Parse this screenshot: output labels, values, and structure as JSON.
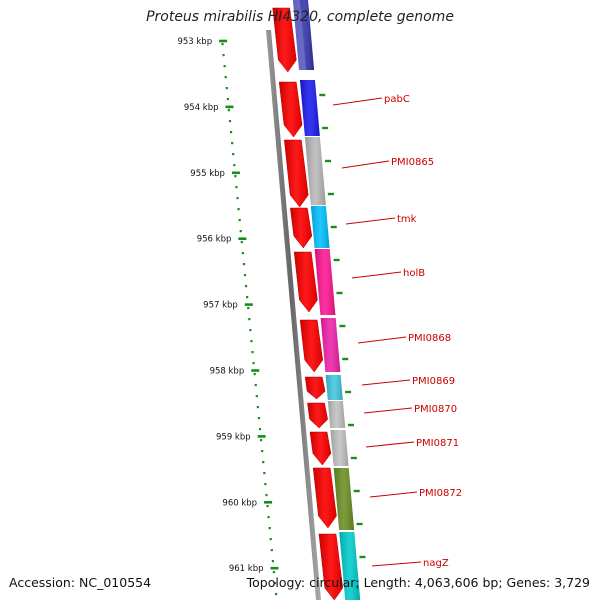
{
  "title": "Proteus mirabilis HI4320, complete genome",
  "footer": {
    "accession": "Accession: NC_010554",
    "summary": "Topology: circular; Length: 4,063,606 bp; Genes: 3,729"
  },
  "colors": {
    "tick_green": "#1a8c1a",
    "cds_red": "#ff0000",
    "label_red": "#cc0000",
    "backbone_gray": "#888888"
  },
  "scale_ticks": [
    "953 kbp",
    "954 kbp",
    "955 kbp",
    "956 kbp",
    "957 kbp",
    "958 kbp",
    "959 kbp",
    "960 kbp",
    "961 kbp"
  ],
  "genes": [
    {
      "name": "",
      "color": "#3333aa"
    },
    {
      "name": "pabC",
      "color": "#1a1aee"
    },
    {
      "name": "PMI0865",
      "color": "#b8b8b8"
    },
    {
      "name": "tmk",
      "color": "#00bfff"
    },
    {
      "name": "holB",
      "color": "#ff1493"
    },
    {
      "name": "PMI0868",
      "color": "#ee22aa"
    },
    {
      "name": "PMI0869",
      "color": "#40c8e0"
    },
    {
      "name": "PMI0870",
      "color": "#c0c0c0"
    },
    {
      "name": "PMI0871",
      "color": "#c0c0c0"
    },
    {
      "name": "PMI0872",
      "color": "#6b8e23"
    },
    {
      "name": "nagZ",
      "color": "#00cccc"
    }
  ]
}
